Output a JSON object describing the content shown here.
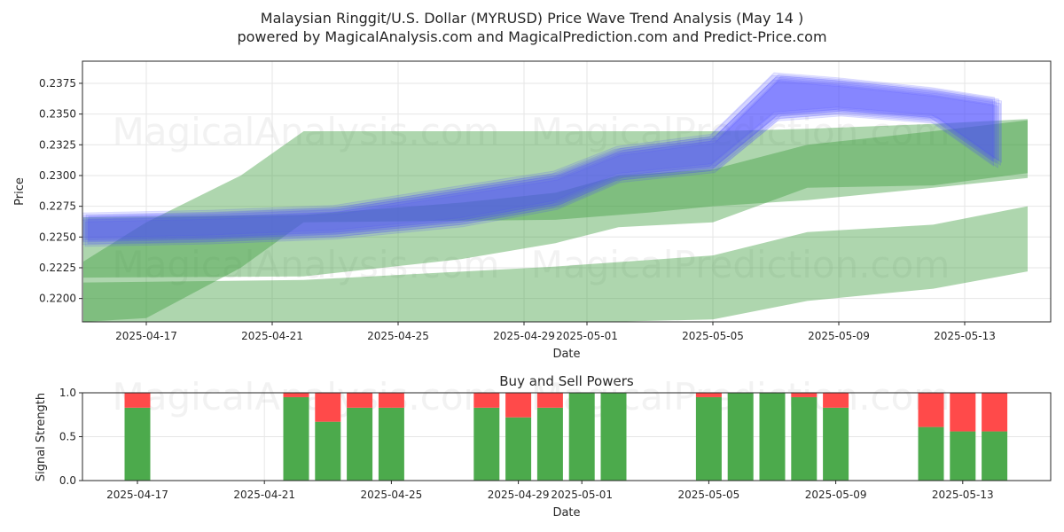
{
  "chart_data": [
    {
      "type": "area",
      "title": "Malaysian Ringgit/U.S. Dollar (MYRUSD) Price Wave Trend Analysis (May 14 )",
      "subtitle": "powered by MagicalAnalysis.com and MagicalPrediction.com and Predict-Price.com",
      "xlabel": "Date",
      "ylabel": "Price",
      "ylim": [
        0.2181,
        0.2393
      ],
      "x_ticks": [
        "2025-04-17",
        "2025-04-21",
        "2025-04-25",
        "2025-04-29",
        "2025-05-01",
        "2025-05-05",
        "2025-05-09",
        "2025-05-13"
      ],
      "y_ticks": [
        "0.2200",
        "0.2225",
        "0.2250",
        "0.2275",
        "0.2300",
        "0.2325",
        "0.2350",
        "0.2375"
      ],
      "grid": true,
      "watermarks": [
        "MagicalAnalysis.com",
        "MagicalPrediction.com"
      ],
      "colors": {
        "blue_band": "#4a4aff",
        "green_band": "#3f9e3f"
      },
      "series": [
        {
          "kind": "green-band",
          "x": [
            "2025-04-15",
            "2025-04-17",
            "2025-04-20",
            "2025-04-22",
            "2025-04-30",
            "2025-05-03",
            "2025-05-05",
            "2025-05-08",
            "2025-05-12",
            "2025-05-15"
          ],
          "upper": [
            0.223,
            0.2262,
            0.23,
            0.2336,
            0.2336,
            0.2336,
            0.2336,
            0.2338,
            0.2342,
            0.2346
          ],
          "lower": [
            0.2181,
            0.2184,
            0.2225,
            0.2262,
            0.2264,
            0.227,
            0.2275,
            0.228,
            0.229,
            0.2298
          ]
        },
        {
          "kind": "green-band",
          "x": [
            "2025-04-15",
            "2025-04-22",
            "2025-04-27",
            "2025-04-30",
            "2025-05-02",
            "2025-05-05",
            "2025-05-08",
            "2025-05-12",
            "2025-05-15"
          ],
          "upper": [
            0.2266,
            0.2268,
            0.2278,
            0.2286,
            0.23,
            0.2305,
            0.2325,
            0.2336,
            0.2345
          ],
          "lower": [
            0.2217,
            0.2218,
            0.2232,
            0.2245,
            0.2258,
            0.2262,
            0.229,
            0.2292,
            0.2302
          ]
        },
        {
          "kind": "green-band",
          "x": [
            "2025-04-15",
            "2025-04-22",
            "2025-04-30",
            "2025-05-05",
            "2025-05-08",
            "2025-05-12",
            "2025-05-15"
          ],
          "upper": [
            0.2213,
            0.2215,
            0.2226,
            0.2235,
            0.2254,
            0.226,
            0.2275
          ],
          "lower": [
            0.218,
            0.218,
            0.218,
            0.2183,
            0.2198,
            0.2208,
            0.2222
          ]
        },
        {
          "kind": "blue-band",
          "x": [
            "2025-04-15",
            "2025-04-19",
            "2025-04-23",
            "2025-04-27",
            "2025-04-30",
            "2025-05-02",
            "2025-05-05",
            "2025-05-07",
            "2025-05-09",
            "2025-05-12",
            "2025-05-14"
          ],
          "upper": [
            0.2266,
            0.2268,
            0.2272,
            0.2288,
            0.23,
            0.232,
            0.233,
            0.238,
            0.2376,
            0.2368,
            0.236
          ],
          "lower": [
            0.2246,
            0.2248,
            0.2252,
            0.2262,
            0.2276,
            0.2298,
            0.2306,
            0.2348,
            0.2352,
            0.2346,
            0.231
          ]
        }
      ]
    },
    {
      "type": "bar",
      "title": "Buy and Sell Powers",
      "xlabel": "Date",
      "ylabel": "Signal Strength",
      "ylim": [
        0,
        1.0
      ],
      "y_ticks": [
        "0.0",
        "0.5",
        "1.0"
      ],
      "x_ticks": [
        "2025-04-17",
        "2025-04-21",
        "2025-04-25",
        "2025-04-29",
        "2025-05-01",
        "2025-05-05",
        "2025-05-09",
        "2025-05-13"
      ],
      "colors": {
        "buy": "#4caa4c",
        "sell": "#ff4a4a"
      },
      "dates": [
        "2025-04-17",
        "2025-04-22",
        "2025-04-23",
        "2025-04-24",
        "2025-04-25",
        "2025-04-28",
        "2025-04-29",
        "2025-04-30",
        "2025-05-01",
        "2025-05-02",
        "2025-05-05",
        "2025-05-06",
        "2025-05-07",
        "2025-05-08",
        "2025-05-09",
        "2025-05-12",
        "2025-05-13",
        "2025-05-14"
      ],
      "series": [
        {
          "name": "Buy",
          "values": [
            0.83,
            0.95,
            0.67,
            0.83,
            0.83,
            0.83,
            0.72,
            0.83,
            1.0,
            1.0,
            0.95,
            1.0,
            1.0,
            0.95,
            0.83,
            0.61,
            0.56,
            0.56
          ]
        },
        {
          "name": "Sell",
          "values": [
            0.17,
            0.05,
            0.33,
            0.17,
            0.17,
            0.17,
            0.28,
            0.17,
            0.0,
            0.0,
            0.05,
            0.0,
            0.0,
            0.05,
            0.17,
            0.39,
            0.44,
            0.44
          ]
        }
      ]
    }
  ]
}
